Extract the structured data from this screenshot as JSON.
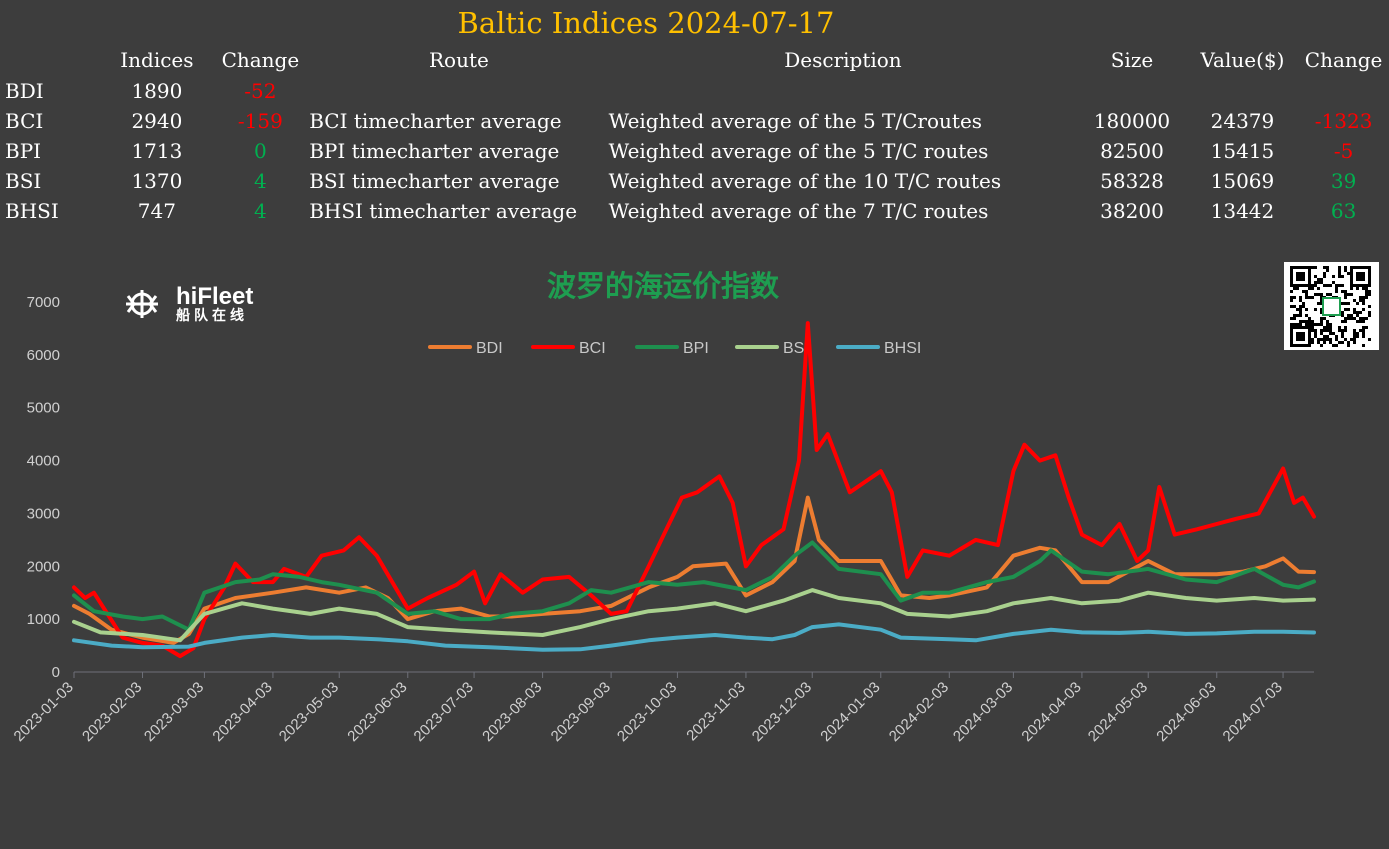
{
  "header": {
    "title": "Baltic Indices 2024-07-17"
  },
  "table": {
    "columns": [
      "",
      "Indices",
      "Change",
      "Route",
      "Description",
      "Size",
      "Value($)",
      "Change"
    ],
    "rows": [
      {
        "name": "BDI",
        "index": "1890",
        "change": "-52",
        "change_sign": "neg",
        "route": "",
        "description": "",
        "size": "",
        "value": "",
        "value_change": "",
        "value_change_sign": ""
      },
      {
        "name": "BCI",
        "index": "2940",
        "change": "-159",
        "change_sign": "neg",
        "route": "BCI timecharter average",
        "description": "Weighted average of the 5 T/Croutes",
        "size": "180000",
        "value": "24379",
        "value_change": "-1323",
        "value_change_sign": "neg"
      },
      {
        "name": "BPI",
        "index": "1713",
        "change": "0",
        "change_sign": "pos",
        "route": "BPI timecharter average",
        "description": "Weighted average of the 5 T/C routes",
        "size": "82500",
        "value": "15415",
        "value_change": "-5",
        "value_change_sign": "neg"
      },
      {
        "name": "BSI",
        "index": "1370",
        "change": "4",
        "change_sign": "pos",
        "route": "BSI timecharter average",
        "description": "Weighted average of the 10 T/C routes",
        "size": "58328",
        "value": "15069",
        "value_change": "39",
        "value_change_sign": "pos"
      },
      {
        "name": "BHSI",
        "index": "747",
        "change": "4",
        "change_sign": "pos",
        "route": "BHSI timecharter average",
        "description": "Weighted average of the 7 T/C routes",
        "size": "38200",
        "value": "13442",
        "value_change": "63",
        "value_change_sign": "pos"
      }
    ]
  },
  "logo": {
    "main": "hiFleet",
    "sub": "船队在线"
  },
  "colors": {
    "background": "#3d3d3d",
    "title": "#ffc000",
    "negative": "#ff0000",
    "positive": "#00b050",
    "chart_title": "#1e9e50"
  },
  "chart_data": {
    "type": "line",
    "title": "波罗的海运价指数",
    "ylim": [
      0,
      7000
    ],
    "yticks": [
      0,
      1000,
      2000,
      3000,
      4000,
      5000,
      6000,
      7000
    ],
    "xlim": [
      "2023-01-03",
      "2024-07-17"
    ],
    "xticks": [
      "2023-01-03",
      "2023-02-03",
      "2023-03-03",
      "2023-04-03",
      "2023-05-03",
      "2023-06-03",
      "2023-07-03",
      "2023-08-03",
      "2023-09-03",
      "2023-10-03",
      "2023-11-03",
      "2023-12-03",
      "2024-01-03",
      "2024-02-03",
      "2024-03-03",
      "2024-04-03",
      "2024-05-03",
      "2024-06-03",
      "2024-07-03"
    ],
    "legend_position": "top",
    "grid": false,
    "series": [
      {
        "name": "BDI",
        "color": "#ed7d31",
        "points": [
          [
            "2023-01-03",
            1250
          ],
          [
            "2023-01-10",
            1100
          ],
          [
            "2023-01-20",
            800
          ],
          [
            "2023-02-03",
            650
          ],
          [
            "2023-02-17",
            550
          ],
          [
            "2023-02-24",
            720
          ],
          [
            "2023-03-03",
            1200
          ],
          [
            "2023-03-17",
            1400
          ],
          [
            "2023-04-03",
            1500
          ],
          [
            "2023-04-18",
            1600
          ],
          [
            "2023-05-03",
            1500
          ],
          [
            "2023-05-15",
            1600
          ],
          [
            "2023-05-25",
            1400
          ],
          [
            "2023-06-03",
            1000
          ],
          [
            "2023-06-15",
            1150
          ],
          [
            "2023-06-27",
            1200
          ],
          [
            "2023-07-10",
            1050
          ],
          [
            "2023-07-20",
            1050
          ],
          [
            "2023-08-03",
            1100
          ],
          [
            "2023-08-20",
            1150
          ],
          [
            "2023-09-03",
            1250
          ],
          [
            "2023-09-20",
            1600
          ],
          [
            "2023-10-03",
            1800
          ],
          [
            "2023-10-10",
            2000
          ],
          [
            "2023-10-25",
            2050
          ],
          [
            "2023-11-03",
            1450
          ],
          [
            "2023-11-15",
            1700
          ],
          [
            "2023-11-25",
            2100
          ],
          [
            "2023-12-01",
            3300
          ],
          [
            "2023-12-06",
            2500
          ],
          [
            "2023-12-15",
            2100
          ],
          [
            "2024-01-03",
            2100
          ],
          [
            "2024-01-12",
            1450
          ],
          [
            "2024-01-25",
            1400
          ],
          [
            "2024-02-03",
            1450
          ],
          [
            "2024-02-20",
            1600
          ],
          [
            "2024-03-03",
            2200
          ],
          [
            "2024-03-15",
            2350
          ],
          [
            "2024-03-22",
            2300
          ],
          [
            "2024-04-03",
            1700
          ],
          [
            "2024-04-15",
            1700
          ],
          [
            "2024-05-03",
            2100
          ],
          [
            "2024-05-15",
            1850
          ],
          [
            "2024-06-03",
            1850
          ],
          [
            "2024-06-15",
            1900
          ],
          [
            "2024-06-25",
            2000
          ],
          [
            "2024-07-03",
            2150
          ],
          [
            "2024-07-10",
            1900
          ],
          [
            "2024-07-17",
            1890
          ]
        ]
      },
      {
        "name": "BCI",
        "color": "#ff0000",
        "points": [
          [
            "2023-01-03",
            1600
          ],
          [
            "2023-01-08",
            1400
          ],
          [
            "2023-01-12",
            1500
          ],
          [
            "2023-01-25",
            650
          ],
          [
            "2023-02-03",
            550
          ],
          [
            "2023-02-12",
            500
          ],
          [
            "2023-02-20",
            300
          ],
          [
            "2023-02-26",
            450
          ],
          [
            "2023-03-03",
            1000
          ],
          [
            "2023-03-12",
            1600
          ],
          [
            "2023-03-17",
            2050
          ],
          [
            "2023-03-25",
            1700
          ],
          [
            "2023-04-03",
            1700
          ],
          [
            "2023-04-08",
            1950
          ],
          [
            "2023-04-18",
            1800
          ],
          [
            "2023-04-25",
            2200
          ],
          [
            "2023-05-05",
            2300
          ],
          [
            "2023-05-12",
            2550
          ],
          [
            "2023-05-20",
            2200
          ],
          [
            "2023-06-03",
            1200
          ],
          [
            "2023-06-12",
            1400
          ],
          [
            "2023-06-25",
            1650
          ],
          [
            "2023-07-03",
            1900
          ],
          [
            "2023-07-08",
            1300
          ],
          [
            "2023-07-15",
            1850
          ],
          [
            "2023-07-25",
            1500
          ],
          [
            "2023-08-03",
            1750
          ],
          [
            "2023-08-15",
            1800
          ],
          [
            "2023-08-25",
            1450
          ],
          [
            "2023-09-03",
            1100
          ],
          [
            "2023-09-10",
            1150
          ],
          [
            "2023-09-20",
            2000
          ],
          [
            "2023-09-28",
            2700
          ],
          [
            "2023-10-05",
            3300
          ],
          [
            "2023-10-12",
            3400
          ],
          [
            "2023-10-22",
            3700
          ],
          [
            "2023-10-28",
            3200
          ],
          [
            "2023-11-03",
            2000
          ],
          [
            "2023-11-10",
            2400
          ],
          [
            "2023-11-20",
            2700
          ],
          [
            "2023-11-27",
            4000
          ],
          [
            "2023-12-01",
            6600
          ],
          [
            "2023-12-05",
            4200
          ],
          [
            "2023-12-10",
            4500
          ],
          [
            "2023-12-20",
            3400
          ],
          [
            "2024-01-03",
            3800
          ],
          [
            "2024-01-08",
            3400
          ],
          [
            "2024-01-15",
            1800
          ],
          [
            "2024-01-22",
            2300
          ],
          [
            "2024-02-03",
            2200
          ],
          [
            "2024-02-15",
            2500
          ],
          [
            "2024-02-25",
            2400
          ],
          [
            "2024-03-03",
            3800
          ],
          [
            "2024-03-08",
            4300
          ],
          [
            "2024-03-15",
            4000
          ],
          [
            "2024-03-22",
            4100
          ],
          [
            "2024-03-28",
            3300
          ],
          [
            "2024-04-03",
            2600
          ],
          [
            "2024-04-12",
            2400
          ],
          [
            "2024-04-20",
            2800
          ],
          [
            "2024-04-28",
            2100
          ],
          [
            "2024-05-03",
            2300
          ],
          [
            "2024-05-08",
            3500
          ],
          [
            "2024-05-15",
            2600
          ],
          [
            "2024-05-25",
            2700
          ],
          [
            "2024-06-03",
            2800
          ],
          [
            "2024-06-12",
            2900
          ],
          [
            "2024-06-22",
            3000
          ],
          [
            "2024-07-03",
            3850
          ],
          [
            "2024-07-08",
            3200
          ],
          [
            "2024-07-12",
            3300
          ],
          [
            "2024-07-17",
            2940
          ]
        ]
      },
      {
        "name": "BPI",
        "color": "#1e8f4e",
        "points": [
          [
            "2023-01-03",
            1450
          ],
          [
            "2023-01-12",
            1150
          ],
          [
            "2023-01-25",
            1050
          ],
          [
            "2023-02-03",
            1000
          ],
          [
            "2023-02-12",
            1050
          ],
          [
            "2023-02-24",
            800
          ],
          [
            "2023-03-03",
            1500
          ],
          [
            "2023-03-17",
            1700
          ],
          [
            "2023-03-28",
            1750
          ],
          [
            "2023-04-03",
            1850
          ],
          [
            "2023-04-15",
            1800
          ],
          [
            "2023-04-25",
            1700
          ],
          [
            "2023-05-03",
            1650
          ],
          [
            "2023-05-20",
            1500
          ],
          [
            "2023-06-03",
            1100
          ],
          [
            "2023-06-15",
            1150
          ],
          [
            "2023-06-27",
            1000
          ],
          [
            "2023-07-10",
            1000
          ],
          [
            "2023-07-20",
            1100
          ],
          [
            "2023-08-03",
            1150
          ],
          [
            "2023-08-15",
            1300
          ],
          [
            "2023-08-25",
            1550
          ],
          [
            "2023-09-03",
            1500
          ],
          [
            "2023-09-20",
            1700
          ],
          [
            "2023-10-03",
            1650
          ],
          [
            "2023-10-15",
            1700
          ],
          [
            "2023-11-03",
            1550
          ],
          [
            "2023-11-15",
            1800
          ],
          [
            "2023-11-25",
            2200
          ],
          [
            "2023-12-03",
            2450
          ],
          [
            "2023-12-15",
            1950
          ],
          [
            "2024-01-03",
            1850
          ],
          [
            "2024-01-12",
            1350
          ],
          [
            "2024-01-22",
            1500
          ],
          [
            "2024-02-03",
            1500
          ],
          [
            "2024-02-20",
            1700
          ],
          [
            "2024-03-03",
            1800
          ],
          [
            "2024-03-15",
            2100
          ],
          [
            "2024-03-20",
            2300
          ],
          [
            "2024-04-03",
            1900
          ],
          [
            "2024-04-15",
            1850
          ],
          [
            "2024-05-03",
            1950
          ],
          [
            "2024-05-20",
            1750
          ],
          [
            "2024-06-03",
            1700
          ],
          [
            "2024-06-20",
            1950
          ],
          [
            "2024-07-03",
            1650
          ],
          [
            "2024-07-10",
            1600
          ],
          [
            "2024-07-17",
            1713
          ]
        ]
      },
      {
        "name": "BSI",
        "color": "#a9d18e",
        "points": [
          [
            "2023-01-03",
            950
          ],
          [
            "2023-01-15",
            750
          ],
          [
            "2023-02-03",
            700
          ],
          [
            "2023-02-20",
            600
          ],
          [
            "2023-03-03",
            1100
          ],
          [
            "2023-03-20",
            1300
          ],
          [
            "2023-04-03",
            1200
          ],
          [
            "2023-04-20",
            1100
          ],
          [
            "2023-05-03",
            1200
          ],
          [
            "2023-05-20",
            1100
          ],
          [
            "2023-06-03",
            850
          ],
          [
            "2023-06-20",
            800
          ],
          [
            "2023-07-10",
            750
          ],
          [
            "2023-08-03",
            700
          ],
          [
            "2023-08-20",
            850
          ],
          [
            "2023-09-03",
            1000
          ],
          [
            "2023-09-20",
            1150
          ],
          [
            "2023-10-03",
            1200
          ],
          [
            "2023-10-20",
            1300
          ],
          [
            "2023-11-03",
            1150
          ],
          [
            "2023-11-20",
            1350
          ],
          [
            "2023-12-03",
            1550
          ],
          [
            "2023-12-15",
            1400
          ],
          [
            "2024-01-03",
            1300
          ],
          [
            "2024-01-15",
            1100
          ],
          [
            "2024-02-03",
            1050
          ],
          [
            "2024-02-20",
            1150
          ],
          [
            "2024-03-03",
            1300
          ],
          [
            "2024-03-20",
            1400
          ],
          [
            "2024-04-03",
            1300
          ],
          [
            "2024-04-20",
            1350
          ],
          [
            "2024-05-03",
            1500
          ],
          [
            "2024-05-20",
            1400
          ],
          [
            "2024-06-03",
            1350
          ],
          [
            "2024-06-20",
            1400
          ],
          [
            "2024-07-03",
            1350
          ],
          [
            "2024-07-17",
            1370
          ]
        ]
      },
      {
        "name": "BHSI",
        "color": "#4bacc6",
        "points": [
          [
            "2023-01-03",
            600
          ],
          [
            "2023-01-20",
            500
          ],
          [
            "2023-02-03",
            470
          ],
          [
            "2023-02-24",
            480
          ],
          [
            "2023-03-03",
            550
          ],
          [
            "2023-03-20",
            650
          ],
          [
            "2023-04-03",
            700
          ],
          [
            "2023-04-20",
            650
          ],
          [
            "2023-05-03",
            650
          ],
          [
            "2023-05-20",
            620
          ],
          [
            "2023-06-03",
            580
          ],
          [
            "2023-06-20",
            500
          ],
          [
            "2023-07-10",
            470
          ],
          [
            "2023-08-03",
            420
          ],
          [
            "2023-08-20",
            430
          ],
          [
            "2023-09-03",
            500
          ],
          [
            "2023-09-20",
            600
          ],
          [
            "2023-10-03",
            650
          ],
          [
            "2023-10-20",
            700
          ],
          [
            "2023-11-03",
            650
          ],
          [
            "2023-11-15",
            620
          ],
          [
            "2023-11-25",
            700
          ],
          [
            "2023-12-03",
            850
          ],
          [
            "2023-12-15",
            900
          ],
          [
            "2024-01-03",
            800
          ],
          [
            "2024-01-12",
            650
          ],
          [
            "2024-02-03",
            620
          ],
          [
            "2024-02-15",
            600
          ],
          [
            "2024-03-03",
            720
          ],
          [
            "2024-03-20",
            800
          ],
          [
            "2024-04-03",
            750
          ],
          [
            "2024-04-20",
            740
          ],
          [
            "2024-05-03",
            760
          ],
          [
            "2024-05-20",
            720
          ],
          [
            "2024-06-03",
            730
          ],
          [
            "2024-06-20",
            760
          ],
          [
            "2024-07-03",
            760
          ],
          [
            "2024-07-17",
            747
          ]
        ]
      }
    ]
  }
}
